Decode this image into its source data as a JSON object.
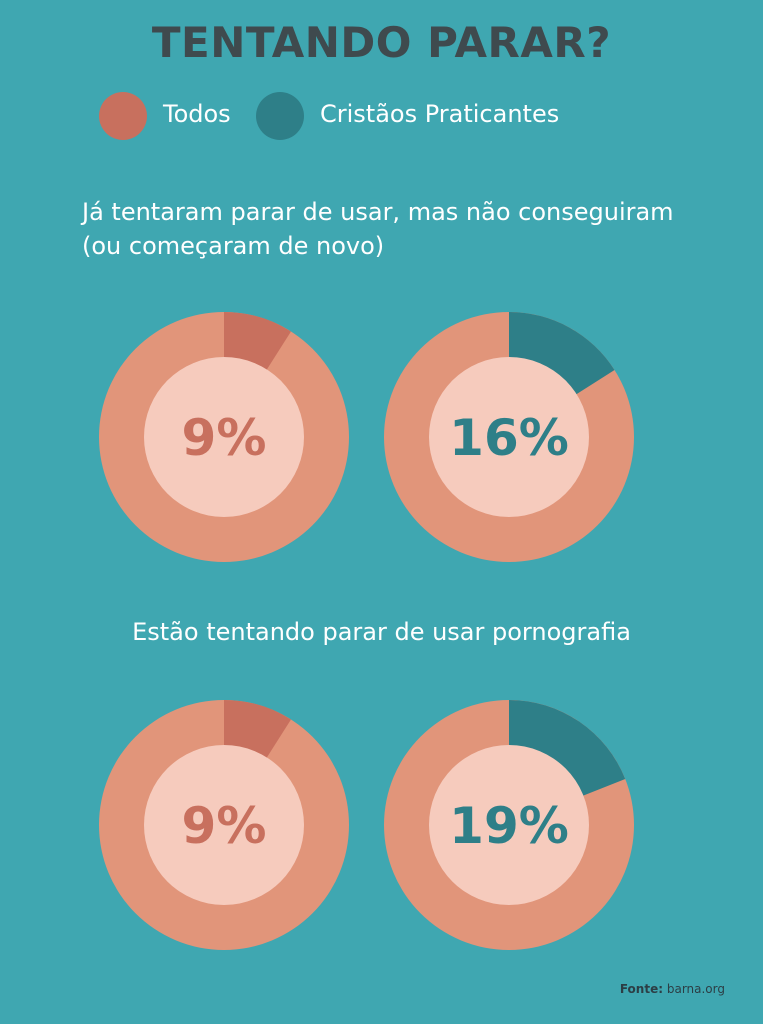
{
  "title": "TENTANDO PARAR?",
  "legend": [
    {
      "label": "Todos",
      "color": "#c8705e"
    },
    {
      "label": "Cristãos Praticantes",
      "color": "#2e7f88"
    }
  ],
  "colors": {
    "background": "#3fa7b1",
    "ring": "#e1957a",
    "center": "#f6cbbd"
  },
  "questions": [
    {
      "text_line1": "Já tentaram parar de usar, mas não conseguiram",
      "text_line2": "(ou começaram de novo)"
    },
    {
      "text": "Estão tentando parar de usar pornografia"
    }
  ],
  "chart_data": [
    {
      "type": "pie",
      "title": "Já tentaram parar de usar, mas não conseguiram (ou começaram de novo)",
      "series": [
        {
          "name": "Todos",
          "value": 9,
          "label": "9%"
        },
        {
          "name": "Cristãos Praticantes",
          "value": 16,
          "label": "16%"
        }
      ]
    },
    {
      "type": "pie",
      "title": "Estão tentando parar de usar pornografia",
      "series": [
        {
          "name": "Todos",
          "value": 9,
          "label": "9%"
        },
        {
          "name": "Cristãos Praticantes",
          "value": 19,
          "label": "19%"
        }
      ]
    }
  ],
  "source": {
    "prefix": "Fonte:",
    "text": "barna.org"
  }
}
